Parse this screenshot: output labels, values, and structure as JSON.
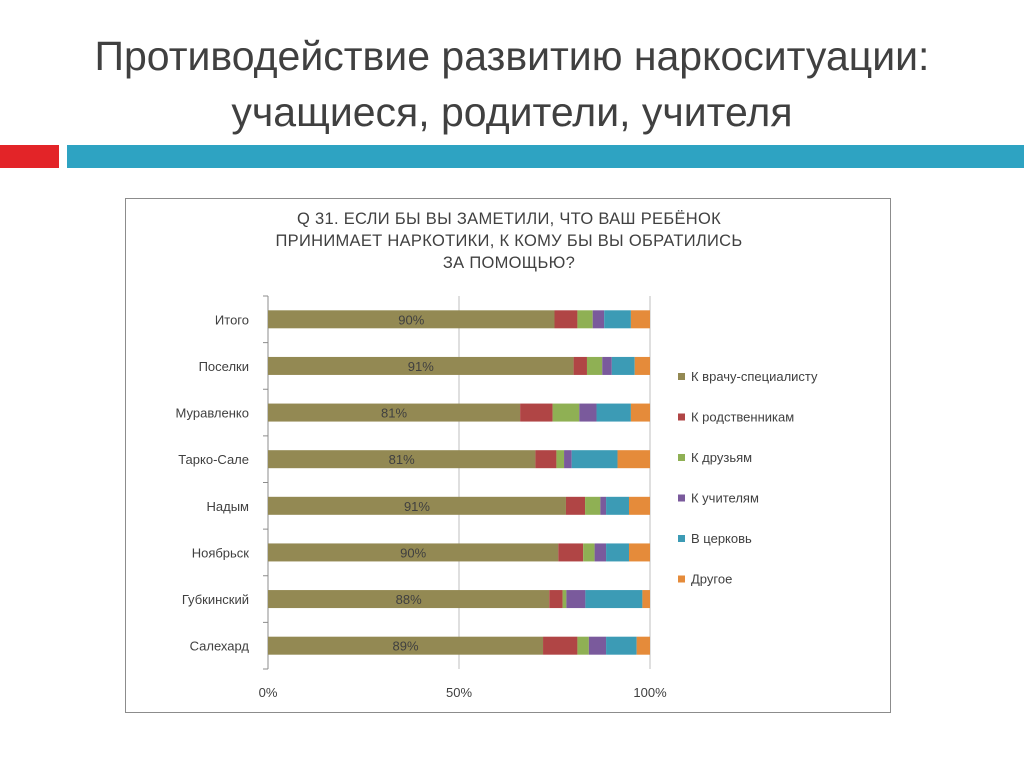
{
  "slide": {
    "title_line1": "Противодействие развитию наркоситуации:",
    "title_line2": "учащиеся, родители, учителя",
    "accent_colors": {
      "red": "#e32428",
      "blue": "#2ea3c2"
    }
  },
  "chart_data": {
    "type": "bar",
    "orientation": "horizontal",
    "stacked": "percent",
    "title_lines": [
      "Q 31. ЕСЛИ БЫ ВЫ ЗАМЕТИЛИ, ЧТО ВАШ РЕБЁНОК",
      "ПРИНИМАЕТ НАРКОТИКИ, К КОМУ БЫ ВЫ ОБРАТИЛИСЬ",
      "ЗА ПОМОЩЬЮ?"
    ],
    "categories": [
      "Итого",
      "Поселки",
      "Муравленко",
      "Тарко-Сале",
      "Надым",
      "Ноябрьск",
      "Губкинский",
      "Салехард"
    ],
    "data_labels": [
      "90%",
      "91%",
      "81%",
      "81%",
      "91%",
      "90%",
      "88%",
      "89%"
    ],
    "xlim": [
      0,
      100
    ],
    "x_ticks": [
      "0%",
      "50%",
      "100%"
    ],
    "gridlines": true,
    "legend_position": "right",
    "series": [
      {
        "name": "К врачу-специалисту",
        "color": "#938953",
        "values": [
          75,
          80,
          66,
          70,
          78,
          76,
          74,
          72
        ]
      },
      {
        "name": "К родственникам",
        "color": "#b04545",
        "values": [
          6,
          3.5,
          8.5,
          5.5,
          5,
          6.5,
          3.5,
          9
        ]
      },
      {
        "name": "К друзьям",
        "color": "#8fb054",
        "values": [
          4,
          4,
          7,
          2,
          4,
          3,
          1,
          3
        ]
      },
      {
        "name": "К учителям",
        "color": "#7a5a9c",
        "values": [
          3,
          2.5,
          4.5,
          2,
          1.5,
          3,
          5,
          4.5
        ]
      },
      {
        "name": "В церковь",
        "color": "#3c9bb5",
        "values": [
          7,
          6,
          9,
          12,
          6,
          6,
          15,
          8
        ]
      },
      {
        "name": "Другое",
        "color": "#e58b3a",
        "values": [
          5,
          4,
          5,
          8.5,
          5.5,
          5.5,
          2,
          3.5
        ]
      }
    ]
  }
}
